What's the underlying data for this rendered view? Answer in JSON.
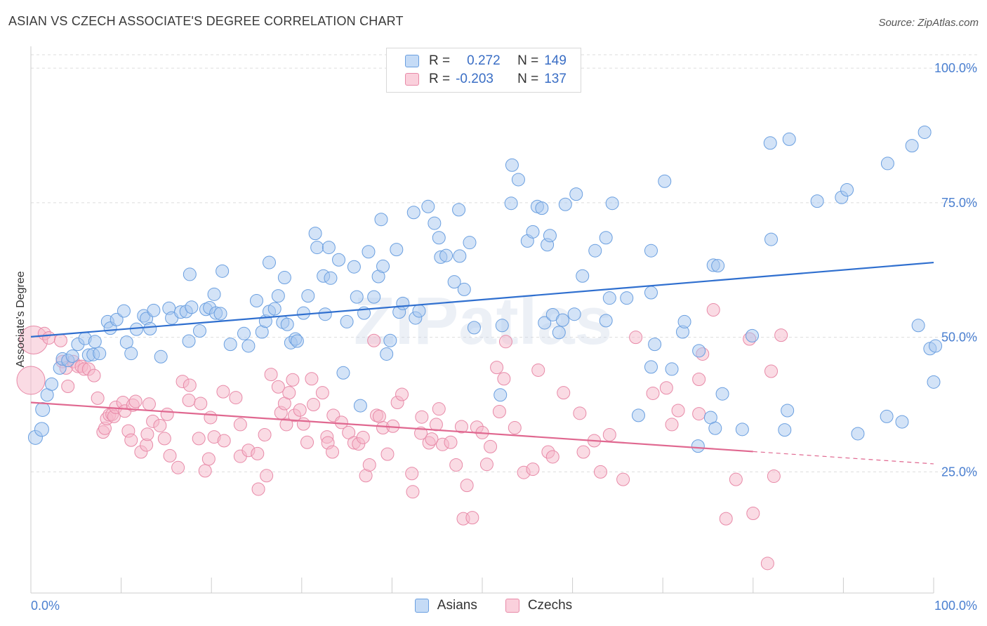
{
  "header": {
    "title": "ASIAN VS CZECH ASSOCIATE'S DEGREE CORRELATION CHART",
    "source": "Source: ZipAtlas.com"
  },
  "watermark": {
    "text": "ZIPatlas"
  },
  "legend": {
    "asians": {
      "r_label": "R =",
      "r_value": "0.272",
      "n_label": "N =",
      "n_value": "149"
    },
    "czechs": {
      "r_label": "R =",
      "r_value": "-0.203",
      "n_label": "N =",
      "n_value": "137"
    }
  },
  "bottom_legend": {
    "asians": "Asians",
    "czechs": "Czechs"
  },
  "colors": {
    "asian_fill": "#a8c8f0",
    "asian_stroke": "#6a9fe0",
    "asian_line": "#2f6fcf",
    "czech_fill": "#f6b7c9",
    "czech_stroke": "#e88aa8",
    "czech_line": "#e06890",
    "tick": "#4a7fd0",
    "grid": "#dddddd"
  },
  "chart_data": {
    "type": "scatter",
    "title": "ASIAN VS CZECH ASSOCIATE'S DEGREE CORRELATION CHART",
    "xlabel": "",
    "ylabel": "Associate's Degree",
    "xlim": [
      0,
      100
    ],
    "ylim": [
      0,
      100
    ],
    "x_tick_labels": [
      "0.0%",
      "100.0%"
    ],
    "y_tick_labels": [
      "100.0%",
      "75.0%",
      "50.0%",
      "25.0%"
    ],
    "y_ticks": [
      100,
      75,
      50,
      25
    ],
    "y_tick_positions": [
      97.5,
      72.5,
      47.5,
      22.5
    ],
    "grid": true,
    "series": [
      {
        "name": "Asians",
        "r": 0.272,
        "n": 149,
        "trend": {
          "x0": 0,
          "y0": 47.6,
          "x1": 100,
          "y1": 61.4,
          "solid_until": 100
        },
        "points": [
          [
            0.5,
            28.9
          ],
          [
            1.2,
            30.4
          ],
          [
            1.3,
            34.1
          ],
          [
            1.8,
            36.8
          ],
          [
            2.3,
            38.8
          ],
          [
            3.2,
            41.8
          ],
          [
            3.5,
            43.5
          ],
          [
            4.1,
            43.2
          ],
          [
            4.6,
            44.0
          ],
          [
            5.2,
            46.2
          ],
          [
            6.0,
            47.3
          ],
          [
            6.4,
            44.2
          ],
          [
            6.9,
            44.3
          ],
          [
            7.1,
            46.7
          ],
          [
            7.6,
            44.5
          ],
          [
            8.5,
            50.4
          ],
          [
            8.8,
            49.2
          ],
          [
            9.5,
            50.8
          ],
          [
            10.3,
            52.4
          ],
          [
            10.6,
            46.6
          ],
          [
            11.1,
            44.5
          ],
          [
            11.7,
            49.0
          ],
          [
            12.5,
            51.5
          ],
          [
            12.8,
            51.0
          ],
          [
            13.6,
            52.5
          ],
          [
            13.2,
            49.1
          ],
          [
            14.4,
            43.9
          ],
          [
            15.3,
            52.9
          ],
          [
            15.6,
            51.1
          ],
          [
            16.6,
            52.2
          ],
          [
            17.2,
            52.3
          ],
          [
            17.8,
            53.1
          ],
          [
            17.5,
            46.8
          ],
          [
            17.6,
            59.2
          ],
          [
            18.7,
            48.7
          ],
          [
            19.4,
            52.7
          ],
          [
            19.8,
            53.0
          ],
          [
            20.3,
            55.5
          ],
          [
            20.5,
            52.0
          ],
          [
            21.0,
            51.9
          ],
          [
            21.2,
            59.8
          ],
          [
            22.1,
            46.2
          ],
          [
            23.6,
            48.2
          ],
          [
            24.1,
            45.9
          ],
          [
            25.0,
            54.3
          ],
          [
            25.6,
            48.5
          ],
          [
            26.0,
            50.5
          ],
          [
            26.4,
            52.3
          ],
          [
            26.4,
            61.4
          ],
          [
            27.0,
            52.8
          ],
          [
            27.4,
            55.2
          ],
          [
            28.1,
            58.6
          ],
          [
            27.9,
            50.3
          ],
          [
            28.4,
            49.9
          ],
          [
            28.8,
            46.5
          ],
          [
            29.3,
            47.2
          ],
          [
            29.5,
            46.8
          ],
          [
            30.2,
            52.0
          ],
          [
            30.7,
            55.2
          ],
          [
            31.5,
            66.8
          ],
          [
            31.7,
            64.2
          ],
          [
            32.4,
            58.9
          ],
          [
            32.6,
            51.8
          ],
          [
            33.0,
            64.2
          ],
          [
            33.2,
            58.5
          ],
          [
            34.1,
            61.9
          ],
          [
            34.6,
            40.9
          ],
          [
            35.0,
            50.4
          ],
          [
            35.8,
            60.6
          ],
          [
            36.1,
            55.0
          ],
          [
            36.5,
            34.8
          ],
          [
            36.9,
            52.0
          ],
          [
            37.4,
            63.4
          ],
          [
            38.0,
            55.0
          ],
          [
            38.5,
            58.8
          ],
          [
            38.8,
            69.4
          ],
          [
            39.0,
            60.7
          ],
          [
            39.4,
            44.4
          ],
          [
            39.8,
            46.9
          ],
          [
            40.5,
            63.8
          ],
          [
            40.8,
            52.2
          ],
          [
            41.2,
            53.8
          ],
          [
            42.4,
            70.7
          ],
          [
            42.6,
            51.1
          ],
          [
            43.0,
            52.4
          ],
          [
            44.0,
            71.8
          ],
          [
            44.7,
            68.7
          ],
          [
            45.2,
            66.0
          ],
          [
            45.4,
            62.4
          ],
          [
            46.0,
            62.7
          ],
          [
            46.9,
            57.8
          ],
          [
            47.4,
            71.2
          ],
          [
            47.5,
            62.6
          ],
          [
            48.0,
            56.4
          ],
          [
            48.6,
            65.1
          ],
          [
            49.1,
            49.3
          ],
          [
            52.0,
            36.8
          ],
          [
            52.2,
            49.7
          ],
          [
            53.2,
            72.4
          ],
          [
            53.3,
            79.5
          ],
          [
            54.0,
            76.8
          ],
          [
            55.0,
            65.4
          ],
          [
            55.6,
            67.1
          ],
          [
            56.1,
            71.8
          ],
          [
            56.6,
            71.5
          ],
          [
            56.9,
            50.2
          ],
          [
            57.2,
            64.7
          ],
          [
            57.5,
            66.4
          ],
          [
            57.8,
            51.7
          ],
          [
            58.5,
            48.4
          ],
          [
            58.9,
            50.7
          ],
          [
            59.2,
            72.2
          ],
          [
            60.2,
            51.8
          ],
          [
            60.4,
            74.1
          ],
          [
            61.1,
            58.9
          ],
          [
            62.5,
            63.6
          ],
          [
            63.7,
            66.0
          ],
          [
            63.7,
            50.6
          ],
          [
            64.1,
            54.8
          ],
          [
            64.4,
            72.4
          ],
          [
            66.0,
            54.8
          ],
          [
            67.3,
            33.0
          ],
          [
            68.7,
            42.0
          ],
          [
            68.7,
            55.8
          ],
          [
            68.7,
            63.6
          ],
          [
            69.1,
            46.2
          ],
          [
            70.2,
            76.5
          ],
          [
            71.0,
            41.6
          ],
          [
            72.2,
            48.5
          ],
          [
            72.4,
            50.4
          ],
          [
            73.9,
            27.3
          ],
          [
            74.0,
            45.0
          ],
          [
            75.6,
            60.9
          ],
          [
            75.3,
            32.6
          ],
          [
            75.8,
            30.6
          ],
          [
            76.1,
            60.8
          ],
          [
            76.6,
            37.0
          ],
          [
            78.8,
            30.4
          ],
          [
            79.9,
            47.8
          ],
          [
            81.9,
            83.6
          ],
          [
            83.5,
            30.3
          ],
          [
            82.0,
            65.7
          ],
          [
            84.0,
            84.3
          ],
          [
            87.1,
            72.8
          ],
          [
            89.8,
            73.5
          ],
          [
            90.4,
            74.9
          ],
          [
            94.9,
            79.8
          ],
          [
            97.6,
            83.1
          ],
          [
            99.0,
            85.6
          ],
          [
            98.3,
            49.7
          ],
          [
            99.6,
            45.4
          ],
          [
            100.2,
            45.9
          ],
          [
            100.0,
            39.2
          ],
          [
            91.6,
            29.6
          ],
          [
            96.5,
            31.8
          ],
          [
            94.8,
            32.8
          ],
          [
            83.8,
            33.9
          ]
        ]
      },
      {
        "name": "Czechs",
        "r": -0.203,
        "n": 137,
        "trend": {
          "x0": 0,
          "y0": 35.4,
          "x1": 100,
          "y1": 24.0,
          "solid_until": 80
        },
        "points": [
          [
            0.0,
            39.5
          ],
          [
            0.3,
            47.0
          ],
          [
            1.5,
            48.2
          ],
          [
            2.0,
            47.4
          ],
          [
            3.3,
            46.9
          ],
          [
            3.5,
            43.0
          ],
          [
            3.9,
            41.8
          ],
          [
            4.1,
            38.4
          ],
          [
            4.7,
            43.0
          ],
          [
            5.2,
            42.1
          ],
          [
            5.6,
            42.1
          ],
          [
            5.9,
            41.6
          ],
          [
            6.4,
            41.6
          ],
          [
            7.0,
            40.4
          ],
          [
            7.4,
            36.2
          ],
          [
            8.0,
            29.9
          ],
          [
            8.2,
            30.6
          ],
          [
            8.4,
            32.4
          ],
          [
            8.7,
            33.1
          ],
          [
            9.0,
            33.2
          ],
          [
            9.2,
            32.8
          ],
          [
            9.4,
            34.5
          ],
          [
            10.2,
            35.4
          ],
          [
            10.4,
            33.8
          ],
          [
            10.8,
            30.1
          ],
          [
            11.1,
            28.4
          ],
          [
            11.3,
            34.9
          ],
          [
            11.6,
            35.6
          ],
          [
            12.2,
            26.2
          ],
          [
            12.8,
            27.5
          ],
          [
            12.9,
            29.5
          ],
          [
            13.1,
            35.1
          ],
          [
            13.5,
            31.9
          ],
          [
            14.3,
            31.1
          ],
          [
            14.8,
            28.7
          ],
          [
            15.1,
            33.2
          ],
          [
            15.4,
            25.5
          ],
          [
            16.3,
            23.3
          ],
          [
            16.8,
            39.3
          ],
          [
            17.5,
            35.8
          ],
          [
            17.6,
            38.6
          ],
          [
            18.6,
            28.7
          ],
          [
            18.8,
            35.2
          ],
          [
            19.3,
            22.7
          ],
          [
            19.7,
            24.9
          ],
          [
            19.9,
            32.6
          ],
          [
            20.3,
            29.0
          ],
          [
            21.3,
            37.4
          ],
          [
            21.4,
            28.3
          ],
          [
            22.7,
            36.3
          ],
          [
            23.2,
            31.3
          ],
          [
            23.2,
            25.4
          ],
          [
            24.1,
            26.5
          ],
          [
            25.2,
            19.3
          ],
          [
            25.1,
            25.9
          ],
          [
            25.9,
            29.4
          ],
          [
            26.1,
            21.8
          ],
          [
            26.6,
            40.6
          ],
          [
            27.4,
            38.3
          ],
          [
            27.7,
            33.5
          ],
          [
            28.1,
            35.2
          ],
          [
            28.6,
            37.2
          ],
          [
            28.3,
            31.3
          ],
          [
            29.0,
            39.6
          ],
          [
            29.2,
            33.0
          ],
          [
            29.8,
            34.0
          ],
          [
            30.2,
            31.4
          ],
          [
            30.6,
            28.0
          ],
          [
            31.1,
            39.8
          ],
          [
            31.3,
            35.0
          ],
          [
            32.3,
            37.2
          ],
          [
            32.8,
            29.0
          ],
          [
            32.9,
            27.9
          ],
          [
            33.4,
            26.2
          ],
          [
            33.5,
            33.0
          ],
          [
            34.4,
            31.7
          ],
          [
            35.2,
            29.8
          ],
          [
            35.8,
            27.9
          ],
          [
            36.3,
            27.7
          ],
          [
            36.8,
            28.9
          ],
          [
            37.1,
            21.8
          ],
          [
            37.5,
            23.8
          ],
          [
            38.0,
            46.9
          ],
          [
            38.3,
            33.0
          ],
          [
            38.6,
            32.8
          ],
          [
            39.0,
            30.7
          ],
          [
            39.5,
            25.8
          ],
          [
            40.1,
            31.0
          ],
          [
            40.6,
            35.4
          ],
          [
            41.1,
            36.9
          ],
          [
            42.2,
            22.2
          ],
          [
            42.3,
            18.8
          ],
          [
            43.2,
            29.7
          ],
          [
            43.3,
            32.7
          ],
          [
            44.1,
            27.9
          ],
          [
            44.4,
            28.6
          ],
          [
            44.9,
            31.3
          ],
          [
            45.2,
            34.2
          ],
          [
            45.6,
            27.6
          ],
          [
            46.5,
            28.0
          ],
          [
            47.1,
            23.8
          ],
          [
            47.7,
            30.9
          ],
          [
            47.9,
            13.8
          ],
          [
            48.3,
            20.0
          ],
          [
            48.9,
            14.0
          ],
          [
            49.4,
            30.8
          ],
          [
            50.0,
            29.8
          ],
          [
            50.5,
            23.9
          ],
          [
            50.9,
            27.2
          ],
          [
            51.6,
            41.9
          ],
          [
            51.9,
            33.7
          ],
          [
            52.4,
            39.8
          ],
          [
            52.6,
            46.7
          ],
          [
            53.6,
            30.7
          ],
          [
            54.6,
            22.4
          ],
          [
            55.6,
            23.0
          ],
          [
            56.2,
            41.4
          ],
          [
            57.3,
            26.2
          ],
          [
            57.8,
            25.3
          ],
          [
            59.0,
            37.2
          ],
          [
            60.8,
            33.4
          ],
          [
            61.2,
            26.2
          ],
          [
            62.4,
            28.3
          ],
          [
            63.1,
            22.5
          ],
          [
            64.1,
            29.4
          ],
          [
            65.6,
            21.1
          ],
          [
            67.0,
            47.5
          ],
          [
            68.9,
            37.1
          ],
          [
            70.4,
            38.1
          ],
          [
            71.7,
            33.9
          ],
          [
            71.0,
            31.3
          ],
          [
            74.0,
            39.7
          ],
          [
            74.0,
            33.3
          ],
          [
            75.6,
            52.6
          ],
          [
            74.4,
            44.4
          ],
          [
            77.0,
            13.8
          ],
          [
            78.1,
            21.1
          ],
          [
            79.6,
            47.2
          ],
          [
            80.0,
            14.8
          ],
          [
            81.6,
            5.5
          ],
          [
            82.3,
            21.7
          ],
          [
            82.0,
            41.2
          ],
          [
            83.1,
            47.9
          ]
        ]
      }
    ]
  }
}
